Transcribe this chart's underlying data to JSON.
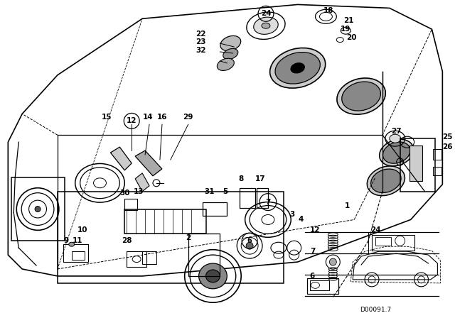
{
  "bg_color": "#ffffff",
  "diagram_code": "D00091.7",
  "figsize": [
    6.4,
    4.48
  ],
  "dpi": 100
}
